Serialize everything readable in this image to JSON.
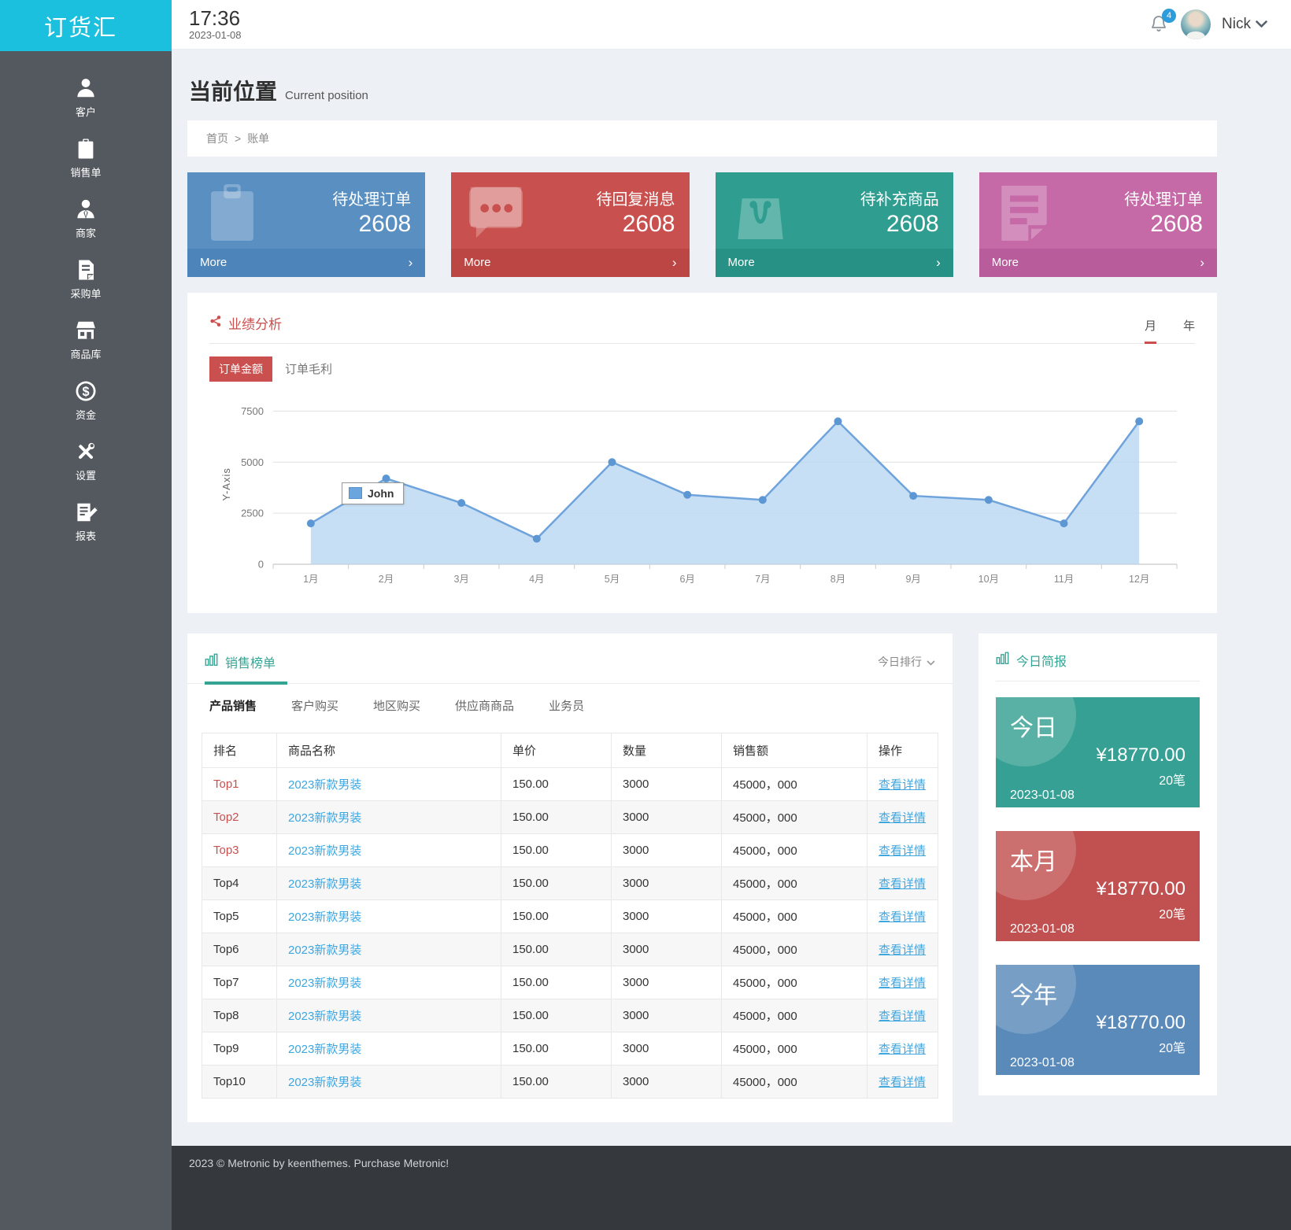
{
  "app": {
    "title": "订货汇",
    "time": "17:36",
    "date": "2023-01-08",
    "user": "Nick",
    "notification_count": "4"
  },
  "page": {
    "title": "当前位置",
    "subtitle": "Current position",
    "breadcrumb": [
      "首页",
      "账单"
    ],
    "breadcrumb_separator": ">"
  },
  "sidebar": {
    "items": [
      {
        "label": "客户",
        "icon": "user-icon"
      },
      {
        "label": "销售单",
        "icon": "clipboard-icon"
      },
      {
        "label": "商家",
        "icon": "merchant-icon"
      },
      {
        "label": "采购单",
        "icon": "purchase-doc-icon"
      },
      {
        "label": "商品库",
        "icon": "store-icon"
      },
      {
        "label": "资金",
        "icon": "funds-icon"
      },
      {
        "label": "设置",
        "icon": "settings-icon"
      },
      {
        "label": "报表",
        "icon": "report-icon"
      }
    ]
  },
  "stat_cards": [
    {
      "title": "待处理订单",
      "value": "2608",
      "more": "More",
      "icon": "clipboard-icon",
      "color": "#5a8fc2",
      "footer_color": "#4d84ba"
    },
    {
      "title": "待回复消息",
      "value": "2608",
      "more": "More",
      "icon": "message-icon",
      "color": "#c8504e",
      "footer_color": "#bc4644"
    },
    {
      "title": "待补充商品",
      "value": "2608",
      "more": "More",
      "icon": "bag-icon",
      "color": "#2f9e91",
      "footer_color": "#289185"
    },
    {
      "title": "待处理订单",
      "value": "2608",
      "more": "More",
      "icon": "document-icon",
      "color": "#c569a7",
      "footer_color": "#b85c9c"
    }
  ],
  "performance": {
    "title": "业绩分析",
    "period_tabs": [
      "月",
      "年"
    ],
    "active_period": "月",
    "series_tabs": [
      "订单金额",
      "订单毛利"
    ],
    "active_series": "订单金额"
  },
  "chart_data": {
    "type": "area",
    "x": [
      "1月",
      "2月",
      "3月",
      "4月",
      "5月",
      "6月",
      "7月",
      "8月",
      "9月",
      "10月",
      "11月",
      "12月"
    ],
    "series": [
      {
        "name": "John",
        "values": [
          2000,
          4200,
          3000,
          1250,
          5000,
          3400,
          3150,
          7000,
          3350,
          3150,
          2000,
          7000
        ]
      }
    ],
    "ylabel": "Y-Axis",
    "yticks": [
      0,
      2500,
      5000,
      7500
    ],
    "ylim": [
      0,
      7900
    ],
    "grid": true,
    "legend_position": "inside-left",
    "line_color": "#6fa3dc",
    "fill_color": "#b9d7f1",
    "dot_color": "#5d97d3"
  },
  "sales": {
    "title": "销售榜单",
    "rank_filter": "今日排行",
    "tabs": [
      "产品销售",
      "客户购买",
      "地区购买",
      "供应商商品",
      "业务员"
    ],
    "active_tab": "产品销售",
    "table": {
      "headers": [
        "排名",
        "商品名称",
        "单价",
        "数量",
        "销售额",
        "操作"
      ],
      "rows": [
        {
          "rank": "Top1",
          "highlight": true,
          "name": "2023新款男装",
          "price": "150.00",
          "qty": "3000",
          "amount": "45000，000",
          "action": "查看详情"
        },
        {
          "rank": "Top2",
          "highlight": true,
          "name": "2023新款男装",
          "price": "150.00",
          "qty": "3000",
          "amount": "45000，000",
          "action": "查看详情"
        },
        {
          "rank": "Top3",
          "highlight": true,
          "name": "2023新款男装",
          "price": "150.00",
          "qty": "3000",
          "amount": "45000，000",
          "action": "查看详情"
        },
        {
          "rank": "Top4",
          "highlight": false,
          "name": "2023新款男装",
          "price": "150.00",
          "qty": "3000",
          "amount": "45000，000",
          "action": "查看详情"
        },
        {
          "rank": "Top5",
          "highlight": false,
          "name": "2023新款男装",
          "price": "150.00",
          "qty": "3000",
          "amount": "45000，000",
          "action": "查看详情"
        },
        {
          "rank": "Top6",
          "highlight": false,
          "name": "2023新款男装",
          "price": "150.00",
          "qty": "3000",
          "amount": "45000，000",
          "action": "查看详情"
        },
        {
          "rank": "Top7",
          "highlight": false,
          "name": "2023新款男装",
          "price": "150.00",
          "qty": "3000",
          "amount": "45000，000",
          "action": "查看详情"
        },
        {
          "rank": "Top8",
          "highlight": false,
          "name": "2023新款男装",
          "price": "150.00",
          "qty": "3000",
          "amount": "45000，000",
          "action": "查看详情"
        },
        {
          "rank": "Top9",
          "highlight": false,
          "name": "2023新款男装",
          "price": "150.00",
          "qty": "3000",
          "amount": "45000，000",
          "action": "查看详情"
        },
        {
          "rank": "Top10",
          "highlight": false,
          "name": "2023新款男装",
          "price": "150.00",
          "qty": "3000",
          "amount": "45000，000",
          "action": "查看详情"
        }
      ]
    }
  },
  "brief": {
    "title": "今日简报",
    "cards": [
      {
        "label": "今日",
        "amount": "¥18770.00",
        "count": "20笔",
        "date": "2023-01-08",
        "color": "#35a093"
      },
      {
        "label": "本月",
        "amount": "¥18770.00",
        "count": "20笔",
        "date": "2023-01-08",
        "color": "#c05150"
      },
      {
        "label": "今年",
        "amount": "¥18770.00",
        "count": "20笔",
        "date": "2023-01-08",
        "color": "#5a8aba"
      }
    ]
  },
  "footer": {
    "text": "2023 © Metronic by keenthemes. Purchase Metronic!"
  }
}
